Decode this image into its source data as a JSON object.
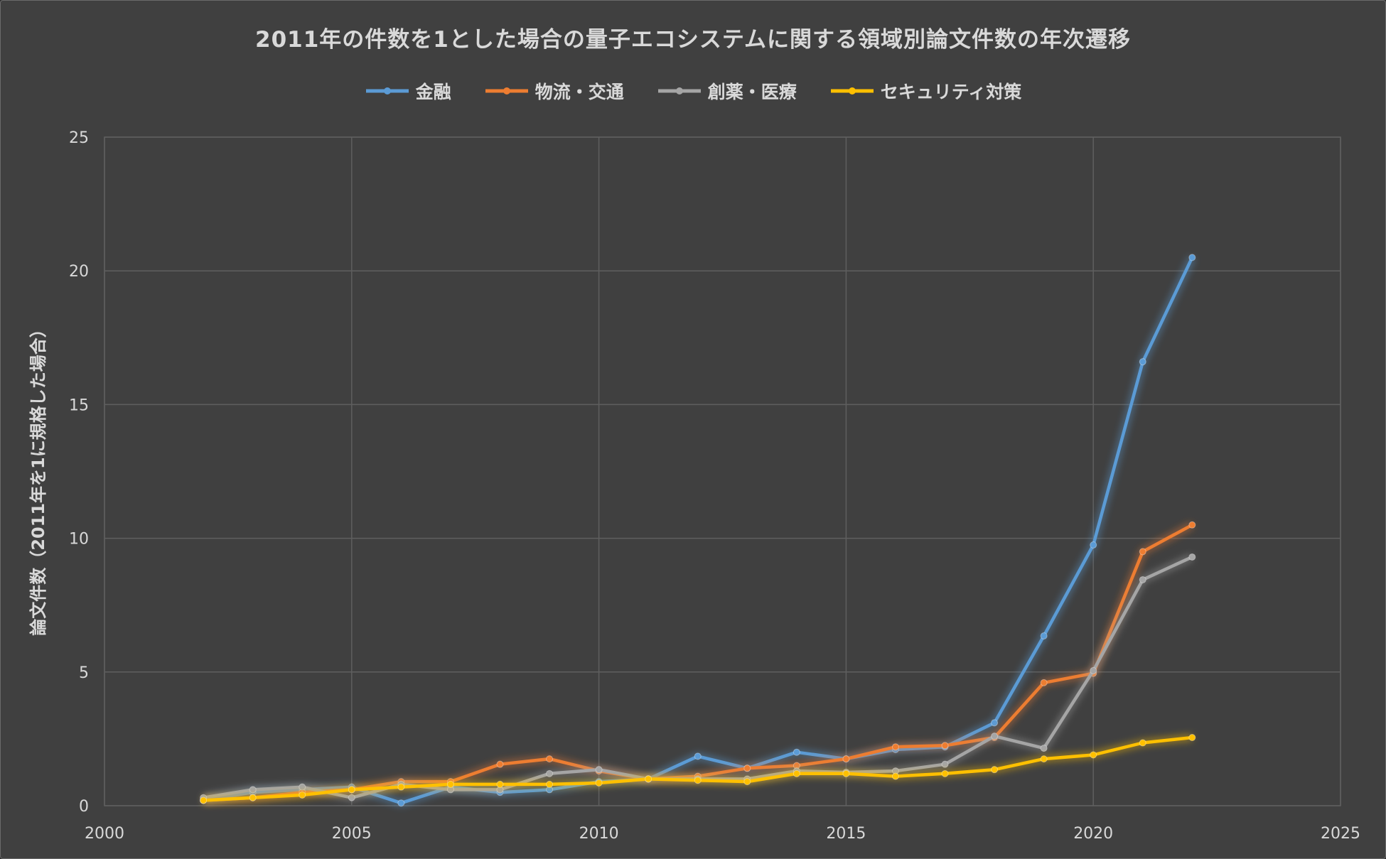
{
  "chart_data": {
    "type": "line",
    "title": "2011年の件数を1とした場合の量子エコシステムに関する領域別論文件数の年次遷移",
    "ylabel": "論文件数（2011年を1に規格した場合）",
    "xlabel": "",
    "xlim": [
      2000,
      2025
    ],
    "ylim": [
      0,
      25
    ],
    "xticks": [
      "2000",
      "2005",
      "2010",
      "2015",
      "2020",
      "2025"
    ],
    "yticks": [
      "0",
      "5",
      "10",
      "15",
      "20",
      "25"
    ],
    "grid": true,
    "legend_position": "top",
    "x": [
      2002,
      2003,
      2004,
      2005,
      2006,
      2007,
      2008,
      2009,
      2010,
      2011,
      2012,
      2013,
      2014,
      2015,
      2016,
      2017,
      2018,
      2019,
      2020,
      2021,
      2022
    ],
    "series": [
      {
        "name": "金融",
        "color": "#5b9bd5",
        "values": [
          0.2,
          0.5,
          0.6,
          0.7,
          0.1,
          0.7,
          0.5,
          0.6,
          0.9,
          1.0,
          1.85,
          1.4,
          2.0,
          1.75,
          2.1,
          2.2,
          3.1,
          6.35,
          9.75,
          16.6,
          20.5
        ]
      },
      {
        "name": "物流・交通",
        "color": "#ed7d31",
        "values": [
          0.2,
          0.3,
          0.5,
          0.6,
          0.9,
          0.9,
          1.55,
          1.75,
          1.3,
          1.0,
          1.1,
          1.4,
          1.5,
          1.75,
          2.2,
          2.25,
          2.55,
          4.6,
          4.95,
          9.5,
          10.5
        ]
      },
      {
        "name": "創薬・医療",
        "color": "#a5a5a5",
        "values": [
          0.3,
          0.6,
          0.7,
          0.3,
          0.8,
          0.6,
          0.6,
          1.2,
          1.35,
          1.0,
          1.0,
          1.0,
          1.3,
          1.25,
          1.3,
          1.55,
          2.6,
          2.15,
          5.05,
          8.45,
          9.3
        ]
      },
      {
        "name": "セキュリティ対策",
        "color": "#ffc000",
        "values": [
          0.2,
          0.3,
          0.4,
          0.6,
          0.7,
          0.8,
          0.8,
          0.8,
          0.85,
          1.0,
          0.95,
          0.9,
          1.2,
          1.2,
          1.1,
          1.2,
          1.35,
          1.75,
          1.9,
          2.35,
          2.55
        ]
      }
    ]
  }
}
